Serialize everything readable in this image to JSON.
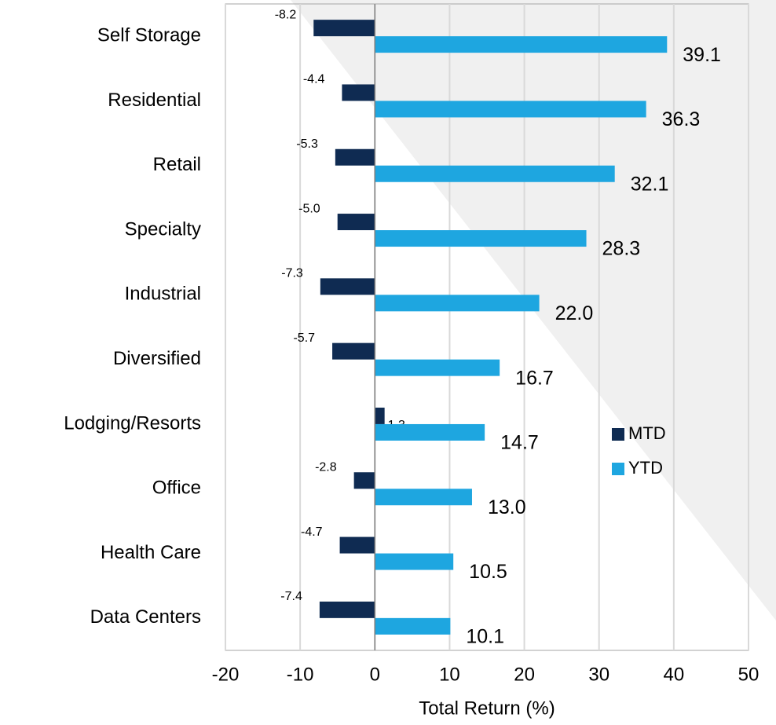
{
  "chart_data": {
    "type": "bar",
    "orientation": "horizontal",
    "categories": [
      "Self Storage",
      "Residential",
      "Retail",
      "Specialty",
      "Industrial",
      "Diversified",
      "Lodging/Resorts",
      "Office",
      "Health Care",
      "Data Centers"
    ],
    "series": [
      {
        "name": "MTD",
        "color": "#0f2b52",
        "values": [
          -8.2,
          -4.4,
          -5.3,
          -5.0,
          -7.3,
          -5.7,
          1.3,
          -2.8,
          -4.7,
          -7.4
        ]
      },
      {
        "name": "YTD",
        "color": "#1ea6e0",
        "values": [
          39.1,
          36.3,
          32.1,
          28.3,
          22.0,
          16.7,
          14.7,
          13.0,
          10.5,
          10.1
        ],
        "value_labels": [
          "39.1",
          "36.3",
          "32.1",
          "28.3",
          "22.0",
          "16.7",
          "14.7",
          "13.0",
          "10.5",
          "10.1"
        ]
      }
    ],
    "mtd_value_labels": [
      "-8.2",
      "-4.4",
      "-5.3",
      "-5.0",
      "-7.3",
      "-5.7",
      "1.3",
      "-2.8",
      "-4.7",
      "-7.4"
    ],
    "xlabel": "Total Return (%)",
    "xlim": [
      -20,
      50
    ],
    "xticks": [
      -20,
      -10,
      0,
      10,
      20,
      30,
      40,
      50
    ],
    "grid": true,
    "legend": "right"
  }
}
